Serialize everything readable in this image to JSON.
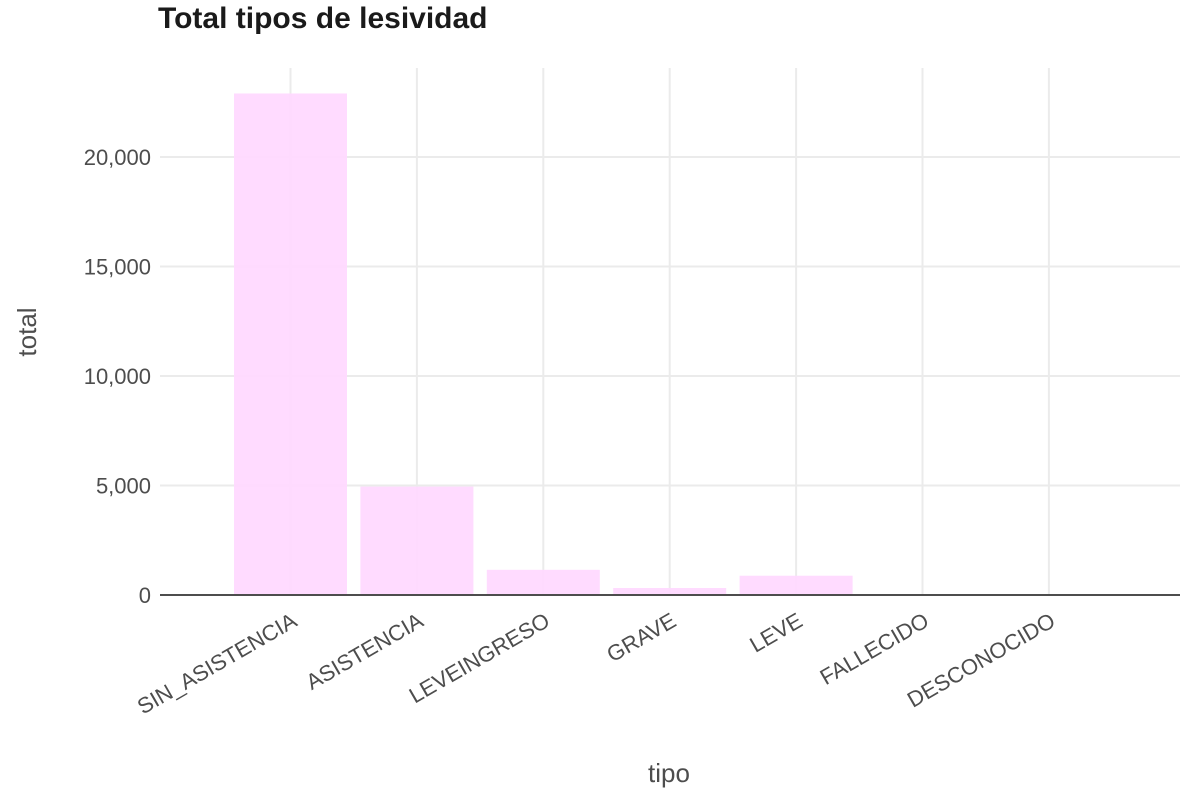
{
  "colors": {
    "bar": "#ffd9ff",
    "grid": "#ebebeb",
    "axis": "#4d4d4d",
    "text": "#4d4d4d",
    "title": "#1a1a1a"
  },
  "chart_data": {
    "type": "bar",
    "title": "Total tipos de lesividad",
    "xlabel": "tipo",
    "ylabel": "total",
    "categories": [
      "SIN_ASISTENCIA",
      "ASISTENCIA",
      "LEVEINGRESO",
      "GRAVE",
      "LEVE",
      "FALLECIDO",
      "DESCONOCIDO"
    ],
    "values": [
      22900,
      4950,
      1150,
      320,
      880,
      40,
      20
    ],
    "ylim": [
      0,
      24000
    ],
    "yticks": [
      0,
      5000,
      10000,
      15000,
      20000
    ],
    "ytick_labels": [
      "0",
      "5,000",
      "10,000",
      "15,000",
      "20,000"
    ],
    "grid": true,
    "legend": "none"
  }
}
